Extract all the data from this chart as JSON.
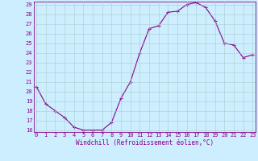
{
  "x": [
    0,
    1,
    2,
    3,
    4,
    5,
    6,
    7,
    8,
    9,
    10,
    11,
    12,
    13,
    14,
    15,
    16,
    17,
    18,
    19,
    20,
    21,
    22,
    23
  ],
  "y": [
    20.5,
    18.7,
    18.0,
    17.3,
    16.3,
    16.0,
    16.0,
    16.0,
    16.8,
    19.3,
    21.0,
    24.0,
    26.5,
    26.8,
    28.2,
    28.3,
    29.0,
    29.2,
    28.7,
    27.3,
    25.0,
    24.8,
    23.5,
    23.8
  ],
  "line_color": "#880088",
  "marker": "+",
  "marker_size": 3.5,
  "marker_lw": 0.8,
  "bg_color": "#cceeff",
  "grid_color": "#aacccc",
  "xlabel": "Windchill (Refroidissement éolien,°C)",
  "xlabel_color": "#880088",
  "tick_color": "#880088",
  "ylim_min": 16,
  "ylim_max": 29,
  "xlim_min": 0,
  "xlim_max": 23,
  "yticks": [
    16,
    17,
    18,
    19,
    20,
    21,
    22,
    23,
    24,
    25,
    26,
    27,
    28,
    29
  ],
  "xticks": [
    0,
    1,
    2,
    3,
    4,
    5,
    6,
    7,
    8,
    9,
    10,
    11,
    12,
    13,
    14,
    15,
    16,
    17,
    18,
    19,
    20,
    21,
    22,
    23
  ],
  "xtick_labels": [
    "0",
    "1",
    "2",
    "3",
    "4",
    "5",
    "6",
    "7",
    "8",
    "9",
    "10",
    "11",
    "12",
    "13",
    "14",
    "15",
    "16",
    "17",
    "18",
    "19",
    "20",
    "21",
    "22",
    "23"
  ],
  "tick_fontsize": 5.0,
  "xlabel_fontsize": 5.5,
  "line_width": 0.8
}
